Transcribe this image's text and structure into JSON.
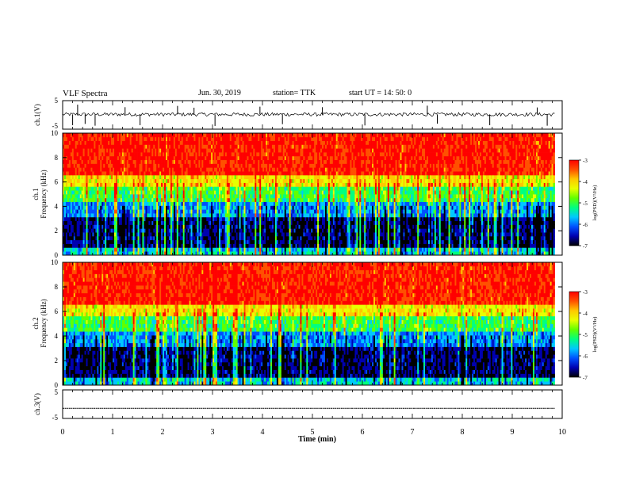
{
  "header": {
    "title": "VLF Spectra",
    "date": "Jun. 30, 2019",
    "station": "station= TTK",
    "start_time": "start UT =  14: 50: 0"
  },
  "colors": {
    "spectrogram_scale": [
      "#000000",
      "#0000b0",
      "#0050ff",
      "#00c8ff",
      "#00ff80",
      "#60ff00",
      "#e8ff00",
      "#ffc800",
      "#ff5000",
      "#ff0000",
      "#ffffff"
    ]
  },
  "chart_data": [
    {
      "type": "line",
      "panel": "ch1 waveform",
      "ylabel": "ch.1(V)",
      "yticks": [
        "5",
        "-5"
      ],
      "ylim": [
        -5,
        5
      ],
      "xlim": [
        0,
        10
      ],
      "baseline_v": 0.2,
      "x": [
        0.2,
        0.3,
        0.45,
        0.65,
        1.25,
        1.55,
        2.3,
        2.63,
        3.05,
        3.95,
        4.4,
        5.2,
        6.05,
        7.3,
        7.5,
        8.55,
        9.5,
        9.7
      ],
      "y": [
        -4,
        4,
        -3.5,
        -4.2,
        3,
        -4,
        3.5,
        2.8,
        -4.3,
        3.2,
        -3.6,
        3,
        -4.1,
        3.6,
        -3.4,
        -4,
        2.9,
        -4.2
      ]
    },
    {
      "type": "heatmap",
      "panel": "ch1 spectrogram",
      "ylabel": "ch.1\nFrequency (kHz)",
      "yticks": [
        "10",
        "8",
        "6",
        "4",
        "2",
        "0"
      ],
      "ylim": [
        0,
        10
      ],
      "xlim": [
        0,
        9.85
      ],
      "colorbar": {
        "label": "log(PSD)(V²/Hz)",
        "ticks": [
          "-3",
          "-4",
          "-5",
          "-6",
          "-7"
        ],
        "range": [
          -7,
          -3
        ]
      },
      "freq_bands_khz": [
        {
          "from": 0,
          "to": 0.5,
          "log_psd": -5.5
        },
        {
          "from": 0.5,
          "to": 3.2,
          "log_psd": -6.6
        },
        {
          "from": 3.2,
          "to": 4.5,
          "log_psd": -5.8
        },
        {
          "from": 4.5,
          "to": 5.5,
          "log_psd": -5.0
        },
        {
          "from": 5.5,
          "to": 6.5,
          "log_psd": -4.2
        },
        {
          "from": 6.5,
          "to": 10,
          "log_psd": -3.3
        }
      ]
    },
    {
      "type": "heatmap",
      "panel": "ch2 spectrogram",
      "ylabel": "ch.2\nFrequency (kHz)",
      "yticks": [
        "10",
        "8",
        "6",
        "4",
        "2",
        "0"
      ],
      "ylim": [
        0,
        10
      ],
      "xlim": [
        0,
        9.85
      ],
      "colorbar": {
        "label": "log(PSD)(V²/Hz)",
        "ticks": [
          "-3",
          "-4",
          "-5",
          "-6",
          "-7"
        ],
        "range": [
          -7,
          -3
        ]
      },
      "freq_bands_khz": [
        {
          "from": 0,
          "to": 0.5,
          "log_psd": -5.5
        },
        {
          "from": 0.5,
          "to": 3.2,
          "log_psd": -6.6
        },
        {
          "from": 3.2,
          "to": 4.5,
          "log_psd": -5.8
        },
        {
          "from": 4.5,
          "to": 5.5,
          "log_psd": -5.0
        },
        {
          "from": 5.5,
          "to": 6.5,
          "log_psd": -4.2
        },
        {
          "from": 6.5,
          "to": 10,
          "log_psd": -3.3
        }
      ]
    },
    {
      "type": "line",
      "panel": "ch3 waveform",
      "ylabel": "ch.3(V)",
      "yticks": [
        "5",
        "-5"
      ],
      "ylim": [
        -5,
        5
      ],
      "xlim": [
        0,
        10
      ],
      "baseline_v": -1.6,
      "xlabel": "Time (min)",
      "xticks": [
        "0",
        "1",
        "2",
        "3",
        "4",
        "5",
        "6",
        "7",
        "8",
        "9",
        "10"
      ]
    }
  ]
}
